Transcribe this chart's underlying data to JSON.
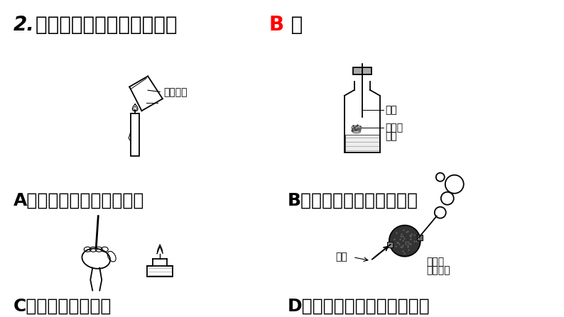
{
  "bg_color": "#ffffff",
  "title_num": "2.",
  "title_text": "下列实验设计不合理的是（ ",
  "title_answer": "B",
  "title_end": " ）",
  "title_fontsize": 20,
  "answer_color": "#ff0000",
  "label_A": "A．证明蜡烛燃烧有水生成",
  "label_B": "B．证明鐵在氧气中能燃烧",
  "label_C": "C．检验氢气的纯度",
  "label_D": "D．证明氢气的密度比空气小",
  "label_fontsize": 18,
  "anno_beaker": "干冷烧杯",
  "anno_oxygen": "氧气",
  "anno_rust": "生锈的",
  "anno_wire": "鐵丝",
  "anno_H2": "氢气",
  "anno_flow": "氢气流",
  "anno_bubble": "吹肥皂泡",
  "anno_fontsize": 10
}
